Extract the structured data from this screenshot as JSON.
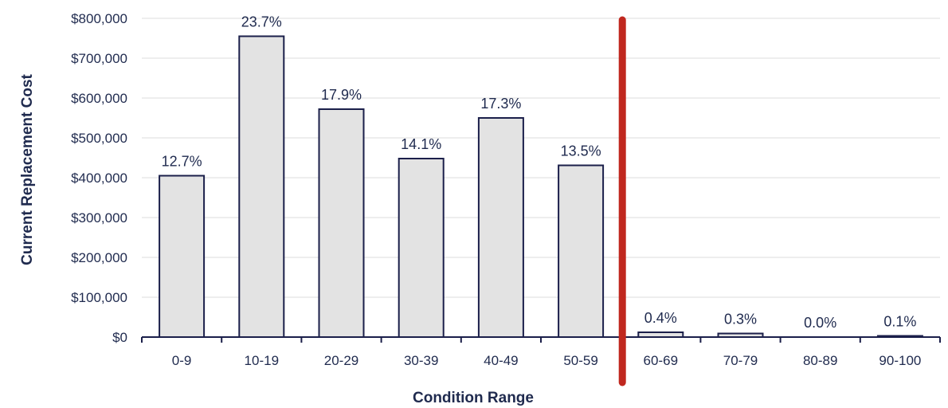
{
  "chart_data": {
    "type": "bar",
    "title": "",
    "xlabel": "Condition Range",
    "ylabel": "Current Replacement Cost",
    "categories": [
      "0-9",
      "10-19",
      "20-29",
      "30-39",
      "40-49",
      "50-59",
      "60-69",
      "70-79",
      "80-89",
      "90-100"
    ],
    "values": [
      405000,
      755000,
      572000,
      448000,
      550000,
      431000,
      12000,
      9000,
      0,
      3000
    ],
    "data_labels": [
      "12.7%",
      "23.7%",
      "17.9%",
      "14.1%",
      "17.3%",
      "13.5%",
      "0.4%",
      "0.3%",
      "0.0%",
      "0.1%"
    ],
    "ylim": [
      0,
      800000
    ],
    "yticks": [
      0,
      100000,
      200000,
      300000,
      400000,
      500000,
      600000,
      700000,
      800000
    ],
    "ytick_labels": [
      "$0",
      "$100,000",
      "$200,000",
      "$300,000",
      "$400,000",
      "$500,000",
      "$600,000",
      "$700,000",
      "$800,000"
    ],
    "grid": true,
    "legend": "none",
    "threshold_after_category": "50-59",
    "colors": {
      "bar_fill": "#e3e3e3",
      "bar_stroke": "#1b1f4a",
      "text": "#1f2a4e",
      "threshold_line": "#c0281f",
      "grid": "#dcdcdc"
    }
  }
}
